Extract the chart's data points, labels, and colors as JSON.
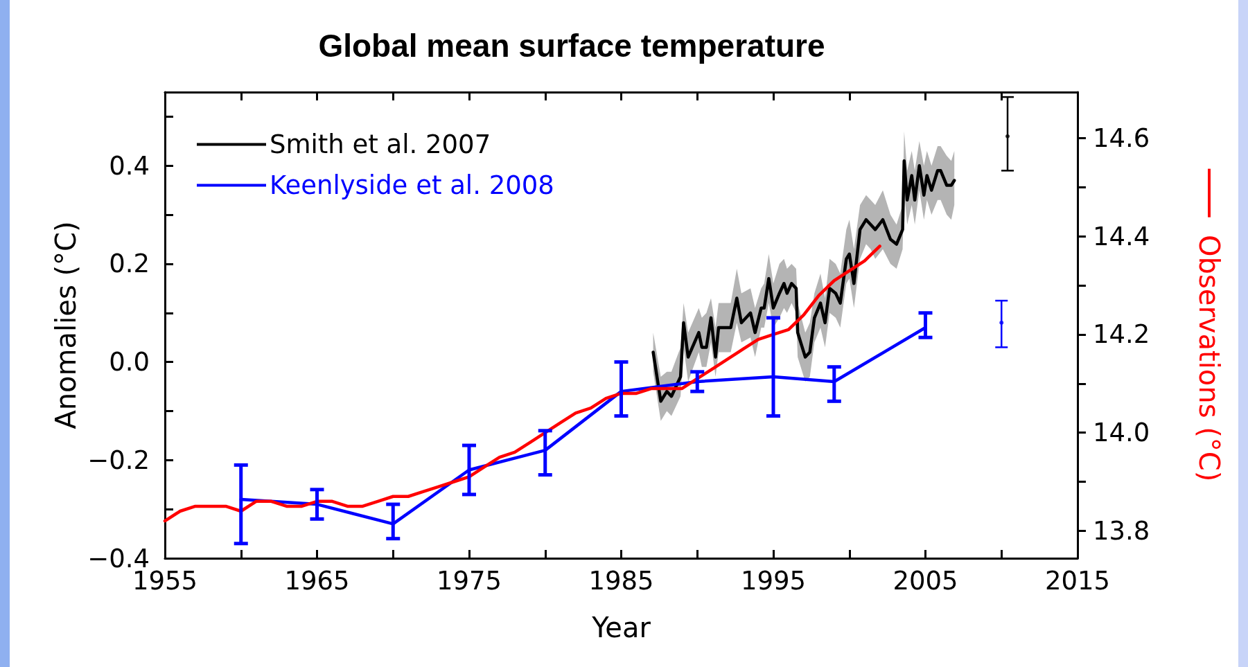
{
  "chart_data": {
    "type": "line",
    "title": "Global mean surface temperature",
    "xlabel": "Year",
    "ylabel": "Anomalies (°C)",
    "y2label": "Observations (°C)",
    "xlim": [
      1955,
      2015
    ],
    "xticks": [
      1955,
      {
        "value": 1960,
        "label": null
      },
      1965,
      {
        "value": 1970,
        "label": null
      },
      1975,
      {
        "value": 1980,
        "label": null
      },
      1985,
      {
        "value": 1990,
        "label": null
      },
      1995,
      {
        "value": 2000,
        "label": null
      },
      2005,
      {
        "value": 2010,
        "label": null
      },
      2015
    ],
    "ylim": [
      -0.4,
      0.55
    ],
    "yticks": [
      {
        "value": -0.4,
        "label": "−0.4"
      },
      {
        "value": -0.3,
        "label": null
      },
      {
        "value": -0.2,
        "label": "−0.2"
      },
      {
        "value": -0.1,
        "label": null
      },
      {
        "value": 0,
        "label": "0.0"
      },
      {
        "value": 0.1,
        "label": null
      },
      {
        "value": 0.2,
        "label": "0.2"
      },
      {
        "value": 0.3,
        "label": null
      },
      {
        "value": 0.4,
        "label": "0.4"
      },
      {
        "value": 0.5,
        "label": null
      }
    ],
    "y2lim": [
      13.744,
      14.694
    ],
    "y2ticks": [
      {
        "value": 13.8,
        "label": "13.8"
      },
      {
        "value": 13.9,
        "label": null
      },
      {
        "value": 14.0,
        "label": "14.0"
      },
      {
        "value": 14.1,
        "label": null
      },
      {
        "value": 14.2,
        "label": "14.2"
      },
      {
        "value": 14.3,
        "label": null
      },
      {
        "value": 14.4,
        "label": "14.4"
      },
      {
        "value": 14.5,
        "label": null
      },
      {
        "value": 14.6,
        "label": "14.6"
      }
    ],
    "grid": false,
    "legend": "top left",
    "marker": "none",
    "line_style": "solid",
    "series": [
      {
        "name": "Smith et al. 2007",
        "color": "#000000",
        "x": [
          1987.1,
          1987.6,
          1988.0,
          1988.3,
          1988.9,
          1989.1,
          1989.4,
          1990.1,
          1990.3,
          1990.6,
          1990.9,
          1991.2,
          1991.4,
          1991.8,
          1992.2,
          1992.6,
          1992.9,
          1993.5,
          1993.8,
          1994.2,
          1994.4,
          1994.7,
          1995.0,
          1995.4,
          1995.7,
          1995.9,
          1996.2,
          1996.5,
          1996.6,
          1997.1,
          1997.4,
          1997.7,
          1998.1,
          1998.4,
          1998.7,
          1999.1,
          1999.4,
          1999.8,
          2000.0,
          2000.3,
          2000.7,
          2001.1,
          2001.4,
          2001.7,
          2002.2,
          2002.7,
          2003.1,
          2003.5,
          2003.6,
          2003.8,
          2004.1,
          2004.3,
          2004.6,
          2004.9,
          2005.1,
          2005.4,
          2005.8,
          2006.0,
          2006.4,
          2006.7,
          2006.9
        ],
        "values": [
          0.02,
          -0.08,
          -0.06,
          -0.07,
          -0.03,
          0.08,
          0.01,
          0.06,
          0.03,
          0.03,
          0.09,
          0.01,
          0.07,
          0.07,
          0.07,
          0.13,
          0.08,
          0.1,
          0.06,
          0.11,
          0.11,
          0.17,
          0.11,
          0.14,
          0.16,
          0.14,
          0.16,
          0.15,
          0.06,
          0.01,
          0.02,
          0.09,
          0.12,
          0.08,
          0.15,
          0.14,
          0.12,
          0.21,
          0.22,
          0.16,
          0.27,
          0.29,
          0.28,
          0.27,
          0.29,
          0.25,
          0.24,
          0.27,
          0.41,
          0.33,
          0.38,
          0.33,
          0.4,
          0.34,
          0.38,
          0.35,
          0.39,
          0.39,
          0.36,
          0.36,
          0.37
        ],
        "upper": [
          0.06,
          -0.03,
          -0.02,
          -0.02,
          0.03,
          0.12,
          0.06,
          0.11,
          0.09,
          0.1,
          0.13,
          0.07,
          0.12,
          0.12,
          0.12,
          0.19,
          0.14,
          0.15,
          0.11,
          0.15,
          0.16,
          0.22,
          0.16,
          0.2,
          0.21,
          0.19,
          0.2,
          0.19,
          0.12,
          0.06,
          0.08,
          0.14,
          0.18,
          0.13,
          0.21,
          0.2,
          0.18,
          0.27,
          0.29,
          0.23,
          0.32,
          0.34,
          0.33,
          0.32,
          0.35,
          0.3,
          0.28,
          0.32,
          0.47,
          0.39,
          0.43,
          0.39,
          0.45,
          0.4,
          0.43,
          0.4,
          0.44,
          0.44,
          0.42,
          0.41,
          0.43
        ],
        "lower": [
          -0.02,
          -0.12,
          -0.1,
          -0.11,
          -0.07,
          0.03,
          -0.04,
          0.02,
          -0.01,
          -0.01,
          0.04,
          -0.03,
          0.02,
          0.02,
          0.02,
          0.08,
          0.04,
          0.05,
          0.01,
          0.07,
          0.07,
          0.12,
          0.07,
          0.09,
          0.11,
          0.1,
          0.12,
          0.1,
          0.01,
          -0.04,
          -0.03,
          0.04,
          0.07,
          0.03,
          0.1,
          0.09,
          0.07,
          0.16,
          0.17,
          0.11,
          0.21,
          0.24,
          0.23,
          0.21,
          0.23,
          0.2,
          0.19,
          0.23,
          0.35,
          0.28,
          0.32,
          0.28,
          0.35,
          0.29,
          0.33,
          0.3,
          0.33,
          0.33,
          0.3,
          0.29,
          0.32
        ]
      },
      {
        "name": "Keenlyside et al. 2008",
        "color": "#0000ff",
        "x": [
          1960,
          1965,
          1970,
          1975,
          1980,
          1985,
          1990,
          1995,
          1999,
          2005
        ],
        "values": [
          -0.28,
          -0.29,
          -0.33,
          -0.22,
          -0.18,
          -0.06,
          -0.04,
          -0.03,
          -0.04,
          0.07
        ],
        "errors": [
          [
            -0.37,
            -0.21
          ],
          [
            -0.32,
            -0.26
          ],
          [
            -0.36,
            -0.29
          ],
          [
            -0.27,
            -0.17
          ],
          [
            -0.23,
            -0.14
          ],
          [
            -0.11,
            0.0
          ],
          [
            -0.06,
            -0.02
          ],
          [
            -0.11,
            0.09
          ],
          [
            -0.08,
            -0.01
          ],
          [
            0.05,
            0.1
          ]
        ]
      },
      {
        "color": "#ff0000",
        "axis": "y2",
        "x": [
          1955,
          1956,
          1957,
          1958,
          1959,
          1960,
          1961,
          1962,
          1963,
          1964,
          1965,
          1966,
          1967,
          1968,
          1969,
          1970,
          1971,
          1972,
          1973,
          1974,
          1975,
          1976,
          1977,
          1978,
          1979,
          1980,
          1981,
          1982,
          1983,
          1984,
          1985,
          1986,
          1987,
          1988,
          1989,
          1990,
          1991,
          1992,
          1993,
          1994,
          1995,
          1996,
          1997,
          1998,
          1999,
          2000,
          2001,
          2002
        ],
        "values": [
          13.82,
          13.84,
          13.85,
          13.85,
          13.85,
          13.84,
          13.86,
          13.86,
          13.85,
          13.85,
          13.86,
          13.86,
          13.85,
          13.85,
          13.86,
          13.87,
          13.87,
          13.88,
          13.89,
          13.9,
          13.91,
          13.93,
          13.95,
          13.96,
          13.98,
          14.0,
          14.02,
          14.04,
          14.05,
          14.07,
          14.08,
          14.08,
          14.09,
          14.09,
          14.09,
          14.11,
          14.13,
          14.15,
          14.17,
          14.19,
          14.2,
          14.21,
          14.24,
          14.28,
          14.31,
          14.33,
          14.35,
          14.38
        ]
      },
      {
        "type": "scatter",
        "marker": "circle",
        "color": "#000000",
        "x": [
          2010.4
        ],
        "values": [
          0.46
        ],
        "errors": [
          [
            0.39,
            0.54
          ]
        ]
      },
      {
        "type": "scatter",
        "marker": "circle",
        "color": "#0000ff",
        "x": [
          2010
        ],
        "values": [
          0.08
        ],
        "errors": [
          [
            0.03,
            0.125
          ]
        ]
      }
    ]
  }
}
